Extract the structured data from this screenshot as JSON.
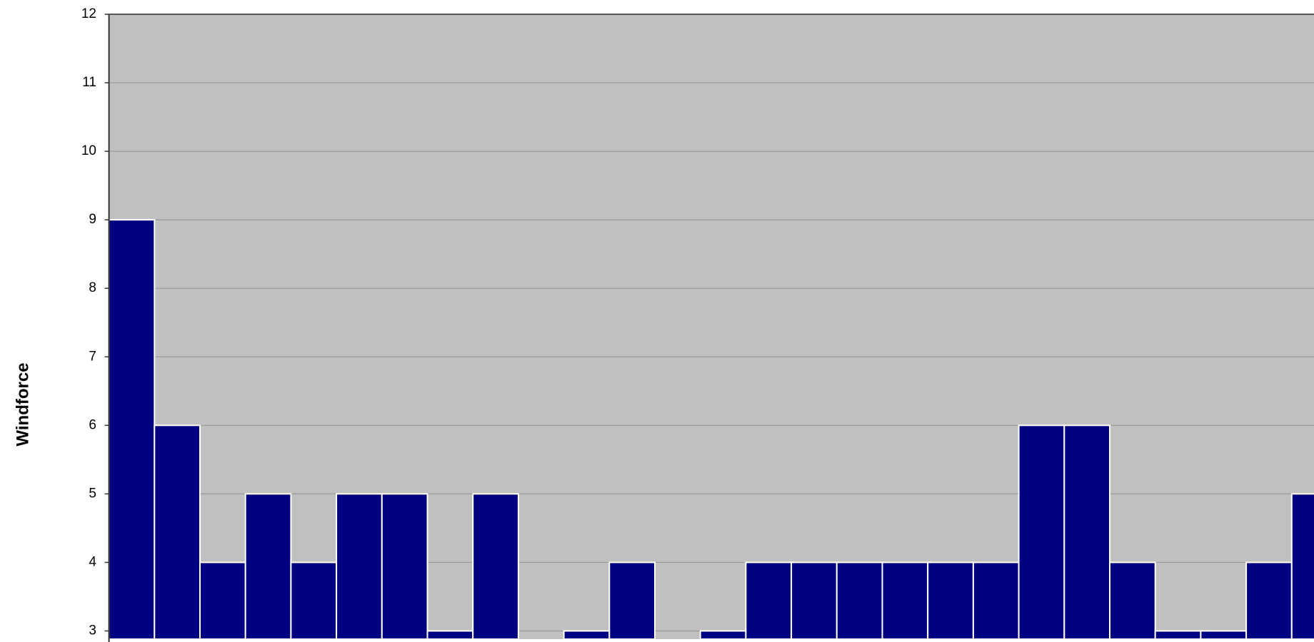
{
  "chart_data": {
    "type": "bar",
    "y_label": "Windforce",
    "categories": [
      null,
      null,
      null,
      null,
      null,
      null,
      null,
      null,
      null,
      null,
      null,
      null,
      null,
      null,
      null,
      null,
      null,
      null,
      null,
      null,
      null,
      null,
      null,
      null,
      null,
      null,
      null
    ],
    "values": [
      9,
      6,
      4,
      5,
      4,
      5,
      5,
      3,
      5,
      null,
      3,
      4,
      null,
      3,
      4,
      4,
      4,
      4,
      4,
      4,
      6,
      6,
      4,
      3,
      3,
      4,
      5
    ],
    "color": "#000080",
    "ylim": [
      2.88,
      12
    ],
    "yticks": [
      3,
      4,
      5,
      6,
      7,
      8,
      9,
      10,
      11,
      12
    ],
    "grid": true
  }
}
